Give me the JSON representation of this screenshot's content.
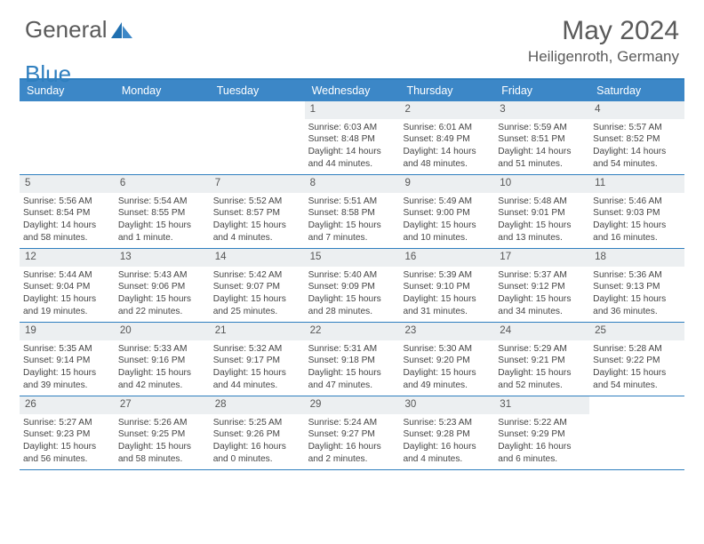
{
  "brand": {
    "part1": "General",
    "part2": "Blue"
  },
  "title": "May 2024",
  "location": "Heiligenroth, Germany",
  "colors": {
    "header_bg": "#3c87c7",
    "border": "#2f7fbf",
    "daynum_bg": "#eceff1",
    "text": "#444444",
    "title_text": "#5a5a5a"
  },
  "day_names": [
    "Sunday",
    "Monday",
    "Tuesday",
    "Wednesday",
    "Thursday",
    "Friday",
    "Saturday"
  ],
  "weeks": [
    [
      {
        "day": "",
        "sunrise": "",
        "sunset": "",
        "daylight": ""
      },
      {
        "day": "",
        "sunrise": "",
        "sunset": "",
        "daylight": ""
      },
      {
        "day": "",
        "sunrise": "",
        "sunset": "",
        "daylight": ""
      },
      {
        "day": "1",
        "sunrise": "Sunrise: 6:03 AM",
        "sunset": "Sunset: 8:48 PM",
        "daylight": "Daylight: 14 hours and 44 minutes."
      },
      {
        "day": "2",
        "sunrise": "Sunrise: 6:01 AM",
        "sunset": "Sunset: 8:49 PM",
        "daylight": "Daylight: 14 hours and 48 minutes."
      },
      {
        "day": "3",
        "sunrise": "Sunrise: 5:59 AM",
        "sunset": "Sunset: 8:51 PM",
        "daylight": "Daylight: 14 hours and 51 minutes."
      },
      {
        "day": "4",
        "sunrise": "Sunrise: 5:57 AM",
        "sunset": "Sunset: 8:52 PM",
        "daylight": "Daylight: 14 hours and 54 minutes."
      }
    ],
    [
      {
        "day": "5",
        "sunrise": "Sunrise: 5:56 AM",
        "sunset": "Sunset: 8:54 PM",
        "daylight": "Daylight: 14 hours and 58 minutes."
      },
      {
        "day": "6",
        "sunrise": "Sunrise: 5:54 AM",
        "sunset": "Sunset: 8:55 PM",
        "daylight": "Daylight: 15 hours and 1 minute."
      },
      {
        "day": "7",
        "sunrise": "Sunrise: 5:52 AM",
        "sunset": "Sunset: 8:57 PM",
        "daylight": "Daylight: 15 hours and 4 minutes."
      },
      {
        "day": "8",
        "sunrise": "Sunrise: 5:51 AM",
        "sunset": "Sunset: 8:58 PM",
        "daylight": "Daylight: 15 hours and 7 minutes."
      },
      {
        "day": "9",
        "sunrise": "Sunrise: 5:49 AM",
        "sunset": "Sunset: 9:00 PM",
        "daylight": "Daylight: 15 hours and 10 minutes."
      },
      {
        "day": "10",
        "sunrise": "Sunrise: 5:48 AM",
        "sunset": "Sunset: 9:01 PM",
        "daylight": "Daylight: 15 hours and 13 minutes."
      },
      {
        "day": "11",
        "sunrise": "Sunrise: 5:46 AM",
        "sunset": "Sunset: 9:03 PM",
        "daylight": "Daylight: 15 hours and 16 minutes."
      }
    ],
    [
      {
        "day": "12",
        "sunrise": "Sunrise: 5:44 AM",
        "sunset": "Sunset: 9:04 PM",
        "daylight": "Daylight: 15 hours and 19 minutes."
      },
      {
        "day": "13",
        "sunrise": "Sunrise: 5:43 AM",
        "sunset": "Sunset: 9:06 PM",
        "daylight": "Daylight: 15 hours and 22 minutes."
      },
      {
        "day": "14",
        "sunrise": "Sunrise: 5:42 AM",
        "sunset": "Sunset: 9:07 PM",
        "daylight": "Daylight: 15 hours and 25 minutes."
      },
      {
        "day": "15",
        "sunrise": "Sunrise: 5:40 AM",
        "sunset": "Sunset: 9:09 PM",
        "daylight": "Daylight: 15 hours and 28 minutes."
      },
      {
        "day": "16",
        "sunrise": "Sunrise: 5:39 AM",
        "sunset": "Sunset: 9:10 PM",
        "daylight": "Daylight: 15 hours and 31 minutes."
      },
      {
        "day": "17",
        "sunrise": "Sunrise: 5:37 AM",
        "sunset": "Sunset: 9:12 PM",
        "daylight": "Daylight: 15 hours and 34 minutes."
      },
      {
        "day": "18",
        "sunrise": "Sunrise: 5:36 AM",
        "sunset": "Sunset: 9:13 PM",
        "daylight": "Daylight: 15 hours and 36 minutes."
      }
    ],
    [
      {
        "day": "19",
        "sunrise": "Sunrise: 5:35 AM",
        "sunset": "Sunset: 9:14 PM",
        "daylight": "Daylight: 15 hours and 39 minutes."
      },
      {
        "day": "20",
        "sunrise": "Sunrise: 5:33 AM",
        "sunset": "Sunset: 9:16 PM",
        "daylight": "Daylight: 15 hours and 42 minutes."
      },
      {
        "day": "21",
        "sunrise": "Sunrise: 5:32 AM",
        "sunset": "Sunset: 9:17 PM",
        "daylight": "Daylight: 15 hours and 44 minutes."
      },
      {
        "day": "22",
        "sunrise": "Sunrise: 5:31 AM",
        "sunset": "Sunset: 9:18 PM",
        "daylight": "Daylight: 15 hours and 47 minutes."
      },
      {
        "day": "23",
        "sunrise": "Sunrise: 5:30 AM",
        "sunset": "Sunset: 9:20 PM",
        "daylight": "Daylight: 15 hours and 49 minutes."
      },
      {
        "day": "24",
        "sunrise": "Sunrise: 5:29 AM",
        "sunset": "Sunset: 9:21 PM",
        "daylight": "Daylight: 15 hours and 52 minutes."
      },
      {
        "day": "25",
        "sunrise": "Sunrise: 5:28 AM",
        "sunset": "Sunset: 9:22 PM",
        "daylight": "Daylight: 15 hours and 54 minutes."
      }
    ],
    [
      {
        "day": "26",
        "sunrise": "Sunrise: 5:27 AM",
        "sunset": "Sunset: 9:23 PM",
        "daylight": "Daylight: 15 hours and 56 minutes."
      },
      {
        "day": "27",
        "sunrise": "Sunrise: 5:26 AM",
        "sunset": "Sunset: 9:25 PM",
        "daylight": "Daylight: 15 hours and 58 minutes."
      },
      {
        "day": "28",
        "sunrise": "Sunrise: 5:25 AM",
        "sunset": "Sunset: 9:26 PM",
        "daylight": "Daylight: 16 hours and 0 minutes."
      },
      {
        "day": "29",
        "sunrise": "Sunrise: 5:24 AM",
        "sunset": "Sunset: 9:27 PM",
        "daylight": "Daylight: 16 hours and 2 minutes."
      },
      {
        "day": "30",
        "sunrise": "Sunrise: 5:23 AM",
        "sunset": "Sunset: 9:28 PM",
        "daylight": "Daylight: 16 hours and 4 minutes."
      },
      {
        "day": "31",
        "sunrise": "Sunrise: 5:22 AM",
        "sunset": "Sunset: 9:29 PM",
        "daylight": "Daylight: 16 hours and 6 minutes."
      },
      {
        "day": "",
        "sunrise": "",
        "sunset": "",
        "daylight": ""
      }
    ]
  ]
}
